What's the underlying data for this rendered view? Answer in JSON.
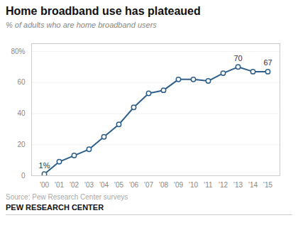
{
  "chart_data": {
    "type": "line",
    "title": "Home broadband  use has plateaued",
    "subtitle": "% of adults who are home broadband users",
    "source": "Source: Pew Research Center surveys",
    "branding": "PEW RESEARCH CENTER",
    "categories": [
      "'00",
      "'01",
      "'02",
      "'03",
      "'04",
      "'05",
      "'06",
      "'07",
      "'08",
      "'09",
      "'10",
      "'11",
      "'12",
      "'13",
      "'14",
      "'15"
    ],
    "values": [
      1,
      9,
      13,
      17,
      25,
      33,
      44,
      53,
      55,
      62,
      62,
      61,
      66,
      70,
      67,
      67
    ],
    "color": "#2e5f8a",
    "marker": "circle",
    "ylim": [
      0,
      85
    ],
    "yticks": [
      0,
      20,
      40,
      60,
      {
        "value": 80,
        "label": "80%"
      }
    ],
    "grid": true,
    "annotations": [
      {
        "text": "1%",
        "x": "'00",
        "y": 1
      },
      {
        "text": "70",
        "x": "'13",
        "y": 70
      },
      {
        "text": "67",
        "x": "'15",
        "y": 67
      }
    ]
  }
}
